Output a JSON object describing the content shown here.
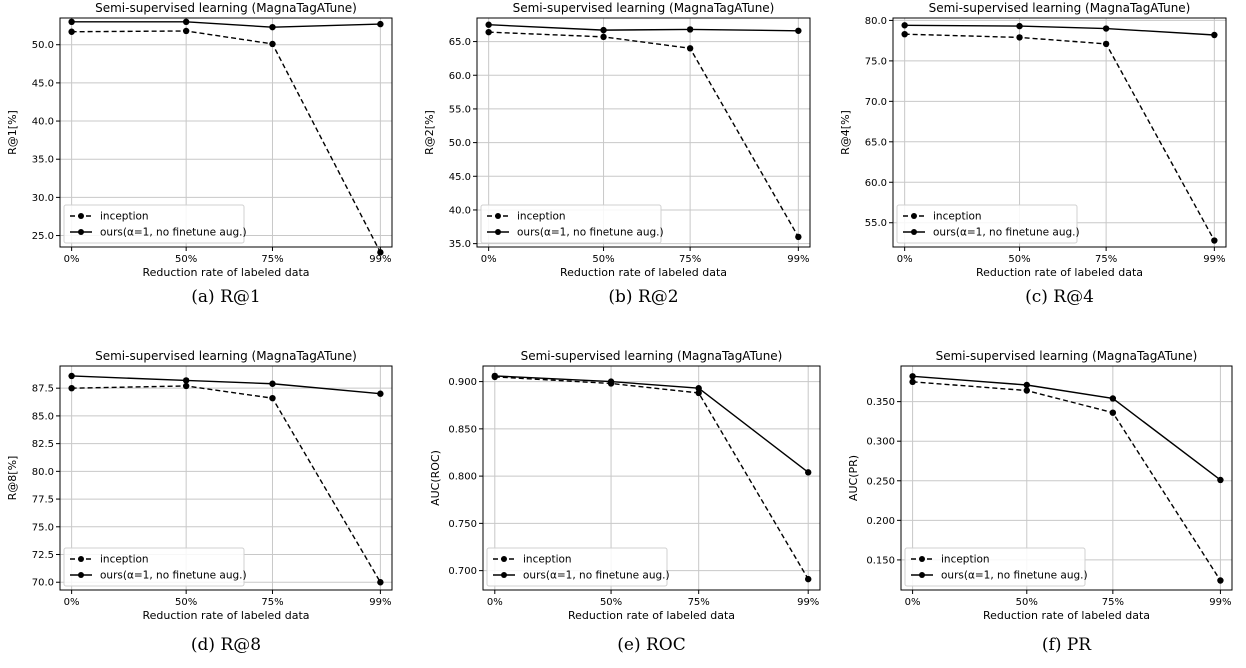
{
  "figure": {
    "x_tick_labels": [
      "0%",
      "50%",
      "75%",
      "99%"
    ]
  },
  "chart_data": [
    {
      "type": "line",
      "panel": "a",
      "title": "Semi-supervised learning (MagnaTagATune)",
      "xlabel": "Reduction rate of labeled data",
      "ylabel": "R@1[%]",
      "caption": "(a) R@1",
      "categories": [
        "0%",
        "50%",
        "75%",
        "99%"
      ],
      "ylim": [
        23.5,
        53.5
      ],
      "yticks": [
        "25.0",
        "30.0",
        "35.0",
        "40.0",
        "45.0",
        "50.0"
      ],
      "ytick_values": [
        25,
        30,
        35,
        40,
        45,
        50
      ],
      "series": [
        {
          "name": "inception",
          "style": "dashed",
          "values": [
            51.7,
            51.8,
            50.1,
            22.8
          ]
        },
        {
          "name": "ours(α=1, no finetune aug.)",
          "style": "solid",
          "values": [
            53.0,
            53.0,
            52.3,
            52.7
          ]
        }
      ],
      "grid": true,
      "legend": "lower-left"
    },
    {
      "type": "line",
      "panel": "b",
      "title": "Semi-supervised learning (MagnaTagATune)",
      "xlabel": "Reduction rate of labeled data",
      "ylabel": "R@2[%]",
      "caption": "(b) R@2",
      "categories": [
        "0%",
        "50%",
        "75%",
        "99%"
      ],
      "ylim": [
        34.5,
        68.5
      ],
      "yticks": [
        "35.0",
        "40.0",
        "45.0",
        "50.0",
        "55.0",
        "60.0",
        "65.0"
      ],
      "ytick_values": [
        35,
        40,
        45,
        50,
        55,
        60,
        65
      ],
      "series": [
        {
          "name": "inception",
          "style": "dashed",
          "values": [
            66.4,
            65.7,
            64.0,
            36.0
          ]
        },
        {
          "name": "ours(α=1, no finetune aug.)",
          "style": "solid",
          "values": [
            67.5,
            66.7,
            66.8,
            66.6
          ]
        }
      ],
      "grid": true,
      "legend": "lower-left"
    },
    {
      "type": "line",
      "panel": "c",
      "title": "Semi-supervised learning (MagnaTagATune)",
      "xlabel": "Reduction rate of labeled data",
      "ylabel": "R@4[%]",
      "caption": "(c) R@4",
      "categories": [
        "0%",
        "50%",
        "75%",
        "99%"
      ],
      "ylim": [
        52.0,
        80.3
      ],
      "yticks": [
        "55.0",
        "60.0",
        "65.0",
        "70.0",
        "75.0",
        "80.0"
      ],
      "ytick_values": [
        55,
        60,
        65,
        70,
        75,
        80
      ],
      "series": [
        {
          "name": "inception",
          "style": "dashed",
          "values": [
            78.3,
            77.9,
            77.1,
            52.8
          ]
        },
        {
          "name": "ours(α=1, no finetune aug.)",
          "style": "solid",
          "values": [
            79.4,
            79.3,
            79.0,
            78.2
          ]
        }
      ],
      "grid": true,
      "legend": "lower-left"
    },
    {
      "type": "line",
      "panel": "d",
      "title": "Semi-supervised learning (MagnaTagATune)",
      "xlabel": "Reduction rate of labeled data",
      "ylabel": "R@8[%]",
      "caption": "(d) R@8",
      "categories": [
        "0%",
        "50%",
        "75%",
        "99%"
      ],
      "ylim": [
        69.3,
        89.5
      ],
      "yticks": [
        "70.0",
        "72.5",
        "75.0",
        "77.5",
        "80.0",
        "82.5",
        "85.0",
        "87.5"
      ],
      "ytick_values": [
        70,
        72.5,
        75,
        77.5,
        80,
        82.5,
        85,
        87.5
      ],
      "series": [
        {
          "name": "inception",
          "style": "dashed",
          "values": [
            87.5,
            87.7,
            86.6,
            70.0
          ]
        },
        {
          "name": "ours(α=1, no finetune aug.)",
          "style": "solid",
          "values": [
            88.6,
            88.2,
            87.9,
            87.0
          ]
        }
      ],
      "grid": true,
      "legend": "lower-left"
    },
    {
      "type": "line",
      "panel": "e",
      "title": "Semi-supervised learning (MagnaTagATune)",
      "xlabel": "Reduction rate of labeled data",
      "ylabel": "AUC(ROC)",
      "caption": "(e) ROC",
      "categories": [
        "0%",
        "50%",
        "75%",
        "99%"
      ],
      "ylim": [
        0.6795,
        0.9165
      ],
      "yticks": [
        "0.700",
        "0.750",
        "0.800",
        "0.850",
        "0.900"
      ],
      "ytick_values": [
        0.7,
        0.75,
        0.8,
        0.85,
        0.9
      ],
      "series": [
        {
          "name": "inception",
          "style": "dashed",
          "values": [
            0.905,
            0.898,
            0.888,
            0.691
          ]
        },
        {
          "name": "ours(α=1, no finetune aug.)",
          "style": "solid",
          "values": [
            0.906,
            0.9,
            0.893,
            0.804
          ]
        }
      ],
      "grid": true,
      "legend": "lower-left"
    },
    {
      "type": "line",
      "panel": "f",
      "title": "Semi-supervised learning (MagnaTagATune)",
      "xlabel": "Reduction rate of labeled data",
      "ylabel": "AUC(PR)",
      "caption": "(f) PR",
      "categories": [
        "0%",
        "50%",
        "75%",
        "99%"
      ],
      "ylim": [
        0.112,
        0.395
      ],
      "yticks": [
        "0.150",
        "0.200",
        "0.250",
        "0.300",
        "0.350"
      ],
      "ytick_values": [
        0.15,
        0.2,
        0.25,
        0.3,
        0.35
      ],
      "series": [
        {
          "name": "inception",
          "style": "dashed",
          "values": [
            0.375,
            0.364,
            0.336,
            0.124
          ]
        },
        {
          "name": "ours(α=1, no finetune aug.)",
          "style": "solid",
          "values": [
            0.382,
            0.371,
            0.354,
            0.251
          ]
        }
      ],
      "grid": true,
      "legend": "lower-left"
    }
  ]
}
